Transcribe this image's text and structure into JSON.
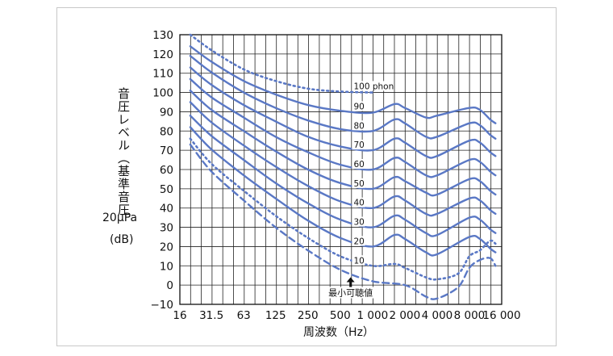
{
  "chart_data": {
    "type": "line",
    "title": "",
    "xlabel": "周波数（Hz）",
    "ylabel": "音圧レベル（基準音圧",
    "ylabel_ref": "20μPa",
    "ylabel_unit": "(dB)",
    "x_scale": "log",
    "xlim": [
      16,
      16000
    ],
    "ylim": [
      -10,
      130
    ],
    "x_ticks": [
      16,
      31.5,
      63,
      125,
      250,
      500,
      1000,
      2000,
      4000,
      8000,
      16000
    ],
    "x_tick_labels": [
      "16",
      "31.5",
      "63",
      "125",
      "250",
      "500",
      "1 000",
      "2 000",
      "4 000",
      "8 000",
      "16 000"
    ],
    "y_ticks": [
      -10,
      0,
      10,
      20,
      30,
      40,
      50,
      60,
      70,
      80,
      90,
      100,
      110,
      120,
      130
    ],
    "y_tick_labels": [
      "−10",
      "0",
      "10",
      "20",
      "30",
      "40",
      "50",
      "60",
      "70",
      "80",
      "90",
      "100",
      "110",
      "120",
      "130"
    ],
    "grid": true,
    "series": [
      {
        "name": "100 phon",
        "style": "dotted",
        "points": [
          [
            20,
            130
          ],
          [
            31.5,
            122
          ],
          [
            63,
            112
          ],
          [
            125,
            106
          ],
          [
            250,
            102
          ],
          [
            500,
            100.5
          ],
          [
            1000,
            100
          ]
        ]
      },
      {
        "name": "90",
        "style": "solid",
        "points": [
          [
            20,
            124
          ],
          [
            31.5,
            116
          ],
          [
            63,
            106
          ],
          [
            125,
            99
          ],
          [
            250,
            93.5
          ],
          [
            500,
            90.5
          ],
          [
            1000,
            89.5
          ],
          [
            1600,
            94
          ],
          [
            2000,
            92
          ],
          [
            3150,
            87
          ],
          [
            4000,
            88
          ],
          [
            8000,
            92
          ],
          [
            10000,
            91
          ],
          [
            12500,
            86
          ],
          [
            14000,
            84
          ]
        ]
      },
      {
        "name": "80",
        "style": "solid",
        "points": [
          [
            20,
            119
          ],
          [
            31.5,
            110.5
          ],
          [
            63,
            100
          ],
          [
            125,
            92
          ],
          [
            250,
            85.5
          ],
          [
            500,
            81
          ],
          [
            1000,
            80
          ],
          [
            1600,
            86
          ],
          [
            2000,
            84
          ],
          [
            3150,
            77
          ],
          [
            4000,
            77
          ],
          [
            8000,
            84
          ],
          [
            10000,
            83
          ],
          [
            12500,
            78
          ],
          [
            14000,
            76
          ]
        ]
      },
      {
        "name": "70",
        "style": "solid",
        "points": [
          [
            20,
            113
          ],
          [
            31.5,
            104
          ],
          [
            63,
            93.5
          ],
          [
            125,
            85
          ],
          [
            250,
            77
          ],
          [
            500,
            72
          ],
          [
            1000,
            70
          ],
          [
            1600,
            76
          ],
          [
            2000,
            74
          ],
          [
            3150,
            67
          ],
          [
            4000,
            67
          ],
          [
            8000,
            75
          ],
          [
            10000,
            74
          ],
          [
            12500,
            69
          ],
          [
            14000,
            67
          ]
        ]
      },
      {
        "name": "60",
        "style": "solid",
        "points": [
          [
            20,
            107
          ],
          [
            31.5,
            97.5
          ],
          [
            63,
            87
          ],
          [
            125,
            77
          ],
          [
            250,
            69
          ],
          [
            500,
            62.5
          ],
          [
            1000,
            60
          ],
          [
            1600,
            66
          ],
          [
            2000,
            64
          ],
          [
            3150,
            57
          ],
          [
            4000,
            57
          ],
          [
            8000,
            65
          ],
          [
            10000,
            64
          ],
          [
            12500,
            59
          ],
          [
            14000,
            57
          ]
        ]
      },
      {
        "name": "50",
        "style": "solid",
        "points": [
          [
            20,
            101
          ],
          [
            31.5,
            91
          ],
          [
            63,
            80
          ],
          [
            125,
            69.5
          ],
          [
            250,
            60
          ],
          [
            500,
            53
          ],
          [
            1000,
            50
          ],
          [
            1600,
            56
          ],
          [
            2000,
            54
          ],
          [
            3150,
            48
          ],
          [
            4000,
            47
          ],
          [
            8000,
            55
          ],
          [
            10000,
            54
          ],
          [
            12500,
            49
          ],
          [
            14000,
            47
          ]
        ]
      },
      {
        "name": "40",
        "style": "solid",
        "points": [
          [
            20,
            95
          ],
          [
            31.5,
            84.5
          ],
          [
            63,
            72.5
          ],
          [
            125,
            61.5
          ],
          [
            250,
            51.5
          ],
          [
            500,
            43.5
          ],
          [
            1000,
            40
          ],
          [
            1600,
            46
          ],
          [
            2000,
            44
          ],
          [
            3150,
            37
          ],
          [
            4000,
            37
          ],
          [
            8000,
            45
          ],
          [
            10000,
            44
          ],
          [
            12500,
            39
          ],
          [
            14000,
            37
          ]
        ]
      },
      {
        "name": "30",
        "style": "solid",
        "points": [
          [
            20,
            88
          ],
          [
            31.5,
            77.5
          ],
          [
            63,
            65
          ],
          [
            125,
            53
          ],
          [
            250,
            42.5
          ],
          [
            500,
            34
          ],
          [
            1000,
            30
          ],
          [
            1600,
            36
          ],
          [
            2000,
            34
          ],
          [
            3150,
            27
          ],
          [
            4000,
            26
          ],
          [
            8000,
            35
          ],
          [
            10000,
            34
          ],
          [
            12500,
            29
          ],
          [
            14000,
            27
          ]
        ]
      },
      {
        "name": "20",
        "style": "solid",
        "points": [
          [
            20,
            82
          ],
          [
            31.5,
            70.5
          ],
          [
            63,
            57
          ],
          [
            125,
            45
          ],
          [
            250,
            33.5
          ],
          [
            500,
            24.5
          ],
          [
            1000,
            20
          ],
          [
            1600,
            26
          ],
          [
            2000,
            24
          ],
          [
            3150,
            17
          ],
          [
            4000,
            16
          ],
          [
            8000,
            25
          ],
          [
            10000,
            24
          ],
          [
            12500,
            19
          ],
          [
            14000,
            17
          ]
        ]
      },
      {
        "name": "10",
        "style": "dotted",
        "points": [
          [
            20,
            76
          ],
          [
            31.5,
            63
          ],
          [
            63,
            49
          ],
          [
            125,
            36
          ],
          [
            250,
            24.5
          ],
          [
            500,
            15
          ],
          [
            1000,
            10
          ],
          [
            1600,
            11
          ],
          [
            2000,
            9
          ],
          [
            3150,
            4
          ],
          [
            4000,
            3
          ],
          [
            6300,
            6
          ],
          [
            8000,
            15
          ],
          [
            10000,
            18
          ],
          [
            12500,
            23
          ],
          [
            14000,
            21.5
          ]
        ]
      },
      {
        "name": "最小可聴値",
        "style": "dashed",
        "points": [
          [
            20,
            73
          ],
          [
            31.5,
            59
          ],
          [
            63,
            44
          ],
          [
            125,
            30
          ],
          [
            250,
            18
          ],
          [
            500,
            8
          ],
          [
            1000,
            2
          ],
          [
            2000,
            0
          ],
          [
            3150,
            -6
          ],
          [
            4000,
            -7
          ],
          [
            6300,
            -1
          ],
          [
            8000,
            9
          ],
          [
            10000,
            13
          ],
          [
            12500,
            14
          ],
          [
            14000,
            10
          ]
        ]
      }
    ],
    "series_labels": [
      {
        "text": "100 phon",
        "x": 850,
        "y": 100.5
      },
      {
        "text": "90",
        "x": 850,
        "y": 90
      },
      {
        "text": "80",
        "x": 850,
        "y": 80
      },
      {
        "text": "70",
        "x": 850,
        "y": 70
      },
      {
        "text": "60",
        "x": 850,
        "y": 60
      },
      {
        "text": "50",
        "x": 850,
        "y": 50
      },
      {
        "text": "40",
        "x": 850,
        "y": 40
      },
      {
        "text": "30",
        "x": 850,
        "y": 30
      },
      {
        "text": "20",
        "x": 850,
        "y": 20
      },
      {
        "text": "10",
        "x": 850,
        "y": 10
      }
    ],
    "annotations": [
      {
        "text": "最小可聴値",
        "x": 630,
        "y": -1
      }
    ],
    "line_color": "#5a78c5"
  }
}
